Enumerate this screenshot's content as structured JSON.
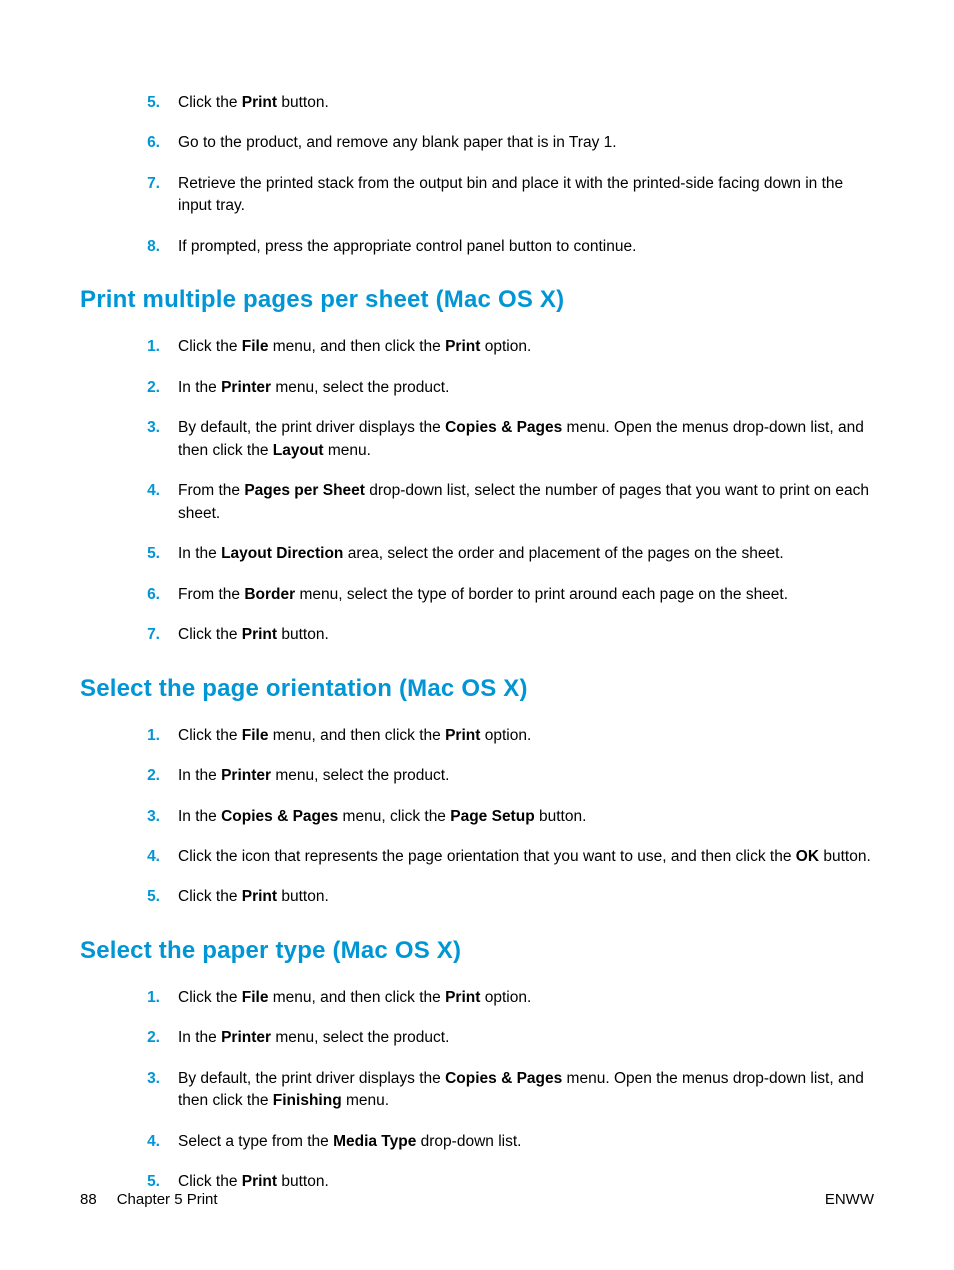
{
  "colors": {
    "accent": "#0096d6",
    "text": "#000000",
    "background": "#ffffff"
  },
  "typography": {
    "body_fontsize_pt": 12,
    "heading_fontsize_pt": 18,
    "font_family": "Arial"
  },
  "top_list": {
    "start": 5,
    "items": [
      [
        {
          "t": "Click the "
        },
        {
          "t": "Print",
          "b": true
        },
        {
          "t": " button."
        }
      ],
      [
        {
          "t": "Go to the product, and remove any blank paper that is in Tray 1."
        }
      ],
      [
        {
          "t": "Retrieve the printed stack from the output bin and place it with the printed-side facing down in the input tray."
        }
      ],
      [
        {
          "t": "If prompted, press the appropriate control panel button to continue."
        }
      ]
    ]
  },
  "sections": [
    {
      "heading": "Print multiple pages per sheet (Mac OS X)",
      "items": [
        [
          {
            "t": "Click the "
          },
          {
            "t": "File",
            "b": true
          },
          {
            "t": " menu, and then click the "
          },
          {
            "t": "Print",
            "b": true
          },
          {
            "t": " option."
          }
        ],
        [
          {
            "t": "In the "
          },
          {
            "t": "Printer",
            "b": true
          },
          {
            "t": " menu, select the product."
          }
        ],
        [
          {
            "t": "By default, the print driver displays the "
          },
          {
            "t": "Copies & Pages",
            "b": true
          },
          {
            "t": " menu. Open the menus drop-down list, and then click the "
          },
          {
            "t": "Layout",
            "b": true
          },
          {
            "t": " menu."
          }
        ],
        [
          {
            "t": "From the "
          },
          {
            "t": "Pages per Sheet",
            "b": true
          },
          {
            "t": " drop-down list, select the number of pages that you want to print on each sheet."
          }
        ],
        [
          {
            "t": "In the "
          },
          {
            "t": "Layout Direction",
            "b": true
          },
          {
            "t": " area, select the order and placement of the pages on the sheet."
          }
        ],
        [
          {
            "t": "From the "
          },
          {
            "t": "Border",
            "b": true
          },
          {
            "t": " menu, select the type of border to print around each page on the sheet."
          }
        ],
        [
          {
            "t": "Click the "
          },
          {
            "t": "Print",
            "b": true
          },
          {
            "t": " button."
          }
        ]
      ]
    },
    {
      "heading": "Select the page orientation (Mac OS X)",
      "items": [
        [
          {
            "t": "Click the "
          },
          {
            "t": "File",
            "b": true
          },
          {
            "t": " menu, and then click the "
          },
          {
            "t": "Print",
            "b": true
          },
          {
            "t": " option."
          }
        ],
        [
          {
            "t": "In the "
          },
          {
            "t": "Printer",
            "b": true
          },
          {
            "t": " menu, select the product."
          }
        ],
        [
          {
            "t": "In the "
          },
          {
            "t": "Copies & Pages",
            "b": true
          },
          {
            "t": " menu, click the "
          },
          {
            "t": "Page Setup",
            "b": true
          },
          {
            "t": " button."
          }
        ],
        [
          {
            "t": "Click the icon that represents the page orientation that you want to use, and then click the "
          },
          {
            "t": "OK",
            "b": true
          },
          {
            "t": " button."
          }
        ],
        [
          {
            "t": "Click the "
          },
          {
            "t": "Print",
            "b": true
          },
          {
            "t": " button."
          }
        ]
      ]
    },
    {
      "heading": "Select the paper type (Mac OS X)",
      "items": [
        [
          {
            "t": "Click the "
          },
          {
            "t": "File",
            "b": true
          },
          {
            "t": " menu, and then click the "
          },
          {
            "t": "Print",
            "b": true
          },
          {
            "t": " option."
          }
        ],
        [
          {
            "t": "In the "
          },
          {
            "t": "Printer",
            "b": true
          },
          {
            "t": " menu, select the product."
          }
        ],
        [
          {
            "t": "By default, the print driver displays the "
          },
          {
            "t": "Copies & Pages",
            "b": true
          },
          {
            "t": " menu. Open the menus drop-down list, and then click the "
          },
          {
            "t": "Finishing",
            "b": true
          },
          {
            "t": " menu."
          }
        ],
        [
          {
            "t": "Select a type from the "
          },
          {
            "t": "Media Type",
            "b": true
          },
          {
            "t": " drop-down list."
          }
        ],
        [
          {
            "t": "Click the "
          },
          {
            "t": "Print",
            "b": true
          },
          {
            "t": " button."
          }
        ]
      ]
    }
  ],
  "footer": {
    "page_number": "88",
    "chapter": "Chapter 5   Print",
    "right": "ENWW"
  }
}
